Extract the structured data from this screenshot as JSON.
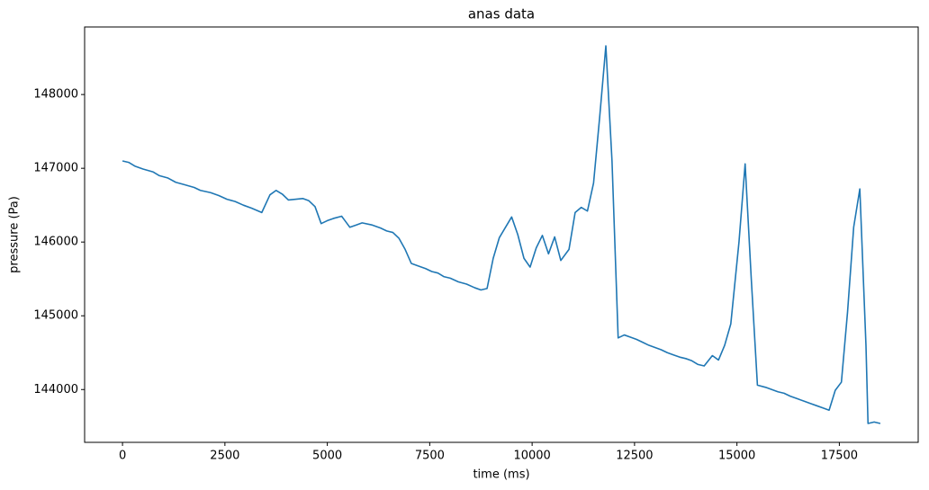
{
  "chart_data": {
    "type": "line",
    "title": "anas data",
    "x_label": "time (ms)",
    "y_label": "pressure (Pa)",
    "color": "#1f77b4",
    "x": [
      0,
      150,
      300,
      500,
      750,
      900,
      1100,
      1300,
      1500,
      1750,
      1900,
      2150,
      2350,
      2550,
      2750,
      2950,
      3150,
      3400,
      3600,
      3750,
      3900,
      4050,
      4400,
      4550,
      4700,
      4850,
      5000,
      5150,
      5350,
      5550,
      5700,
      5850,
      6100,
      6300,
      6450,
      6600,
      6750,
      6900,
      7050,
      7200,
      7400,
      7550,
      7700,
      7850,
      8000,
      8200,
      8400,
      8600,
      8750,
      8900,
      9050,
      9200,
      9350,
      9500,
      9650,
      9800,
      9950,
      10100,
      10250,
      10400,
      10550,
      10700,
      10900,
      11050,
      11200,
      11350,
      11500,
      11650,
      11800,
      11950,
      12100,
      12250,
      12400,
      12550,
      12700,
      12850,
      13000,
      13150,
      13300,
      13450,
      13600,
      13750,
      13900,
      14050,
      14200,
      14400,
      14550,
      14700,
      14850,
      15050,
      15200,
      15350,
      15500,
      15700,
      15850,
      16000,
      16150,
      16300,
      16500,
      16650,
      16800,
      16950,
      17100,
      17250,
      17400,
      17550,
      17700,
      17850,
      18000,
      18150,
      18200,
      18350,
      18500
    ],
    "values": [
      147100,
      147080,
      147030,
      146990,
      146950,
      146900,
      146870,
      146810,
      146780,
      146740,
      146700,
      146670,
      146630,
      146580,
      146550,
      146500,
      146460,
      146400,
      146640,
      146700,
      146650,
      146570,
      146590,
      146560,
      146480,
      146250,
      146290,
      146320,
      146350,
      146200,
      146230,
      146260,
      146230,
      146190,
      146150,
      146130,
      146050,
      145900,
      145710,
      145680,
      145640,
      145600,
      145580,
      145530,
      145510,
      145460,
      145430,
      145380,
      145350,
      145370,
      145780,
      146060,
      146200,
      146340,
      146100,
      145780,
      145660,
      145920,
      146090,
      145840,
      146070,
      145750,
      145900,
      146400,
      146470,
      146420,
      146800,
      147700,
      148660,
      147100,
      144700,
      144740,
      144710,
      144680,
      144640,
      144600,
      144570,
      144540,
      144500,
      144470,
      144440,
      144420,
      144390,
      144340,
      144320,
      144460,
      144400,
      144600,
      144890,
      146000,
      147060,
      145500,
      144060,
      144030,
      144000,
      143970,
      143950,
      143910,
      143870,
      143840,
      143810,
      143780,
      143750,
      143720,
      143990,
      144100,
      145050,
      146200,
      146720,
      144600,
      143540,
      143560,
      143540
    ],
    "xlim": [
      -925,
      19425
    ],
    "ylim": [
      143284,
      148916
    ],
    "xticks": [
      0,
      2500,
      5000,
      7500,
      10000,
      12500,
      15000,
      17500
    ],
    "yticks": [
      144000,
      145000,
      146000,
      147000,
      148000
    ]
  }
}
